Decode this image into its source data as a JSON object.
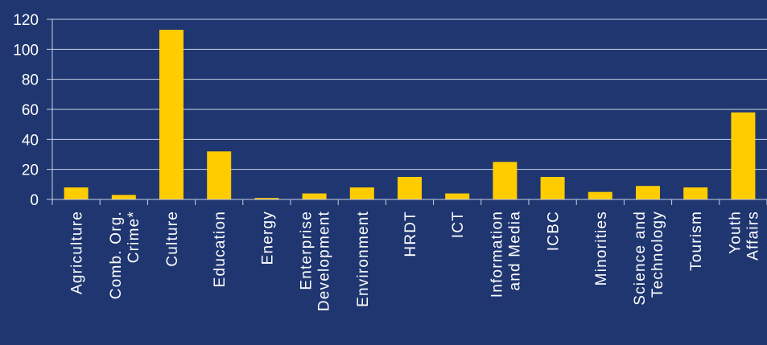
{
  "chart_data": {
    "type": "bar",
    "categories": [
      [
        "Agriculture"
      ],
      [
        "Comb. Org.",
        "Crime*"
      ],
      [
        "Culture"
      ],
      [
        "Education"
      ],
      [
        "Energy"
      ],
      [
        "Enterprise",
        "Development"
      ],
      [
        "Environment"
      ],
      [
        "HRDT"
      ],
      [
        "ICT"
      ],
      [
        "Information",
        "and Media"
      ],
      [
        "ICBC"
      ],
      [
        "Minorities"
      ],
      [
        "Science and",
        "Technology"
      ],
      [
        "Tourism"
      ],
      [
        "Youth",
        "Affairs"
      ]
    ],
    "values": [
      8,
      3,
      113,
      32,
      1,
      4,
      8,
      15,
      4,
      25,
      15,
      5,
      9,
      8,
      58
    ],
    "yticks": [
      0,
      20,
      40,
      60,
      80,
      100,
      120
    ],
    "ylim": [
      0,
      120
    ],
    "grid": true,
    "title": "",
    "xlabel": "",
    "ylabel": "",
    "colors": {
      "background": "#1f3670",
      "bar": "#ffcc00",
      "grid": "#c8d2e6",
      "text": "#ffffff"
    }
  }
}
